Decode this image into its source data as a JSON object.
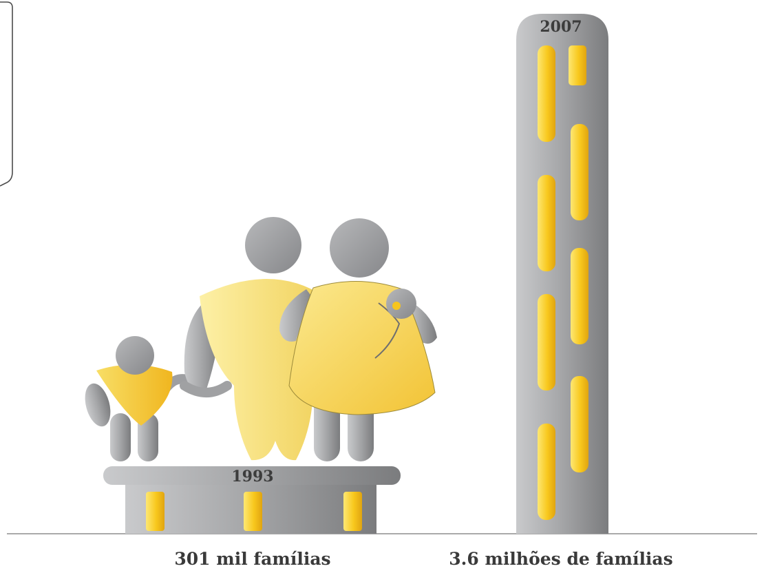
{
  "chart_data": {
    "type": "bar",
    "categories": [
      "1993",
      "2007"
    ],
    "bar_labels": [
      "301 mil famílias",
      "3.6 milhões de famílias"
    ],
    "values": [
      0.301,
      3.6
    ],
    "unit": "milhões de famílias",
    "colors": {
      "building_gray": "#a9a9ab",
      "window_yellow": "#f7c51c",
      "figure_yellow": "#f6dc6a",
      "figure_gray": "#a5a6a9"
    }
  }
}
